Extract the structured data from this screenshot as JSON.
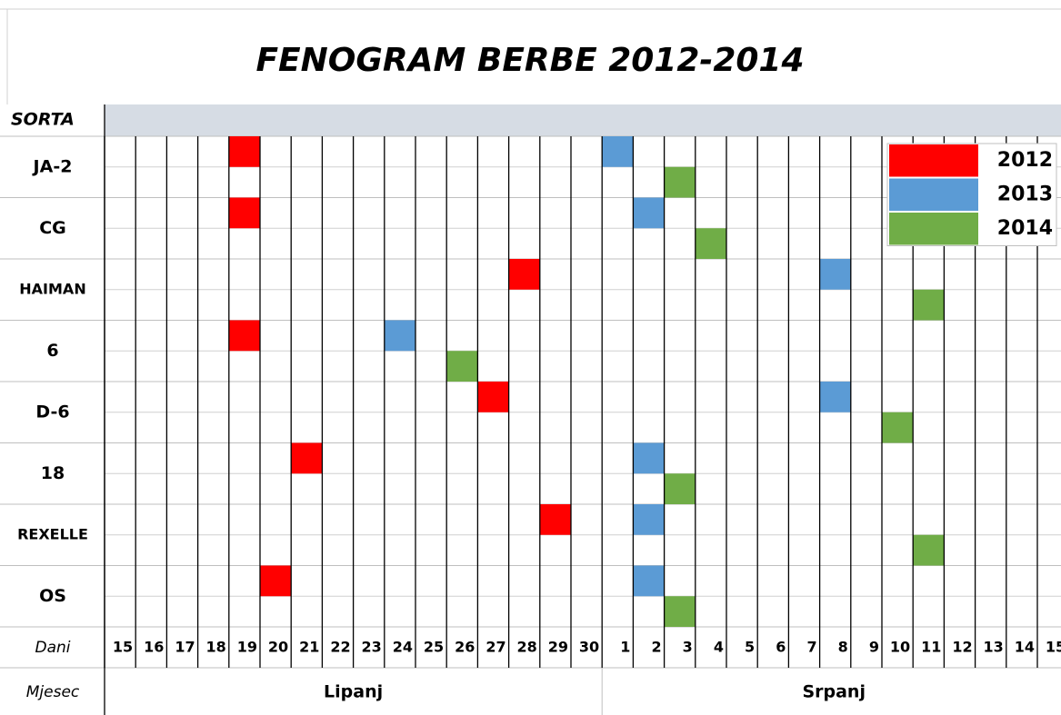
{
  "chart_data": {
    "type": "phenogram",
    "title": "FENOGRAM BERBE 2012-2014",
    "row_header": "SORTA",
    "x_header": "Dani",
    "month_header": "Mjesec",
    "categories": [
      "JA-2",
      "CG",
      "HAIMAN",
      "6",
      "D-6",
      "18",
      "REXELLE",
      "OS"
    ],
    "days": [
      15,
      16,
      17,
      18,
      19,
      20,
      21,
      22,
      23,
      24,
      25,
      26,
      27,
      28,
      29,
      30,
      1,
      2,
      3,
      4,
      5,
      6,
      7,
      8,
      9,
      10,
      11,
      12,
      13,
      14,
      15
    ],
    "month_labels": [
      "Lipanj",
      "Srpanj"
    ],
    "legend": "top-right",
    "series": [
      {
        "name": "2012",
        "color": "#ff0000",
        "values": [
          19,
          19,
          28,
          19,
          27,
          21,
          29,
          20
        ],
        "months": [
          "Lipanj",
          "Lipanj",
          "Lipanj",
          "Lipanj",
          "Lipanj",
          "Lipanj",
          "Lipanj",
          "Lipanj"
        ]
      },
      {
        "name": "2013",
        "color": "#5b9bd5",
        "values": [
          1,
          2,
          8,
          24,
          8,
          2,
          2,
          2
        ],
        "months": [
          "Srpanj",
          "Srpanj",
          "Srpanj",
          "Lipanj",
          "Srpanj",
          "Srpanj",
          "Srpanj",
          "Srpanj"
        ]
      },
      {
        "name": "2014",
        "color": "#70ad47",
        "values": [
          3,
          4,
          11,
          26,
          10,
          3,
          11,
          3
        ],
        "months": [
          "Srpanj",
          "Srpanj",
          "Srpanj",
          "Lipanj",
          "Srpanj",
          "Srpanj",
          "Srpanj",
          "Srpanj"
        ]
      }
    ]
  }
}
